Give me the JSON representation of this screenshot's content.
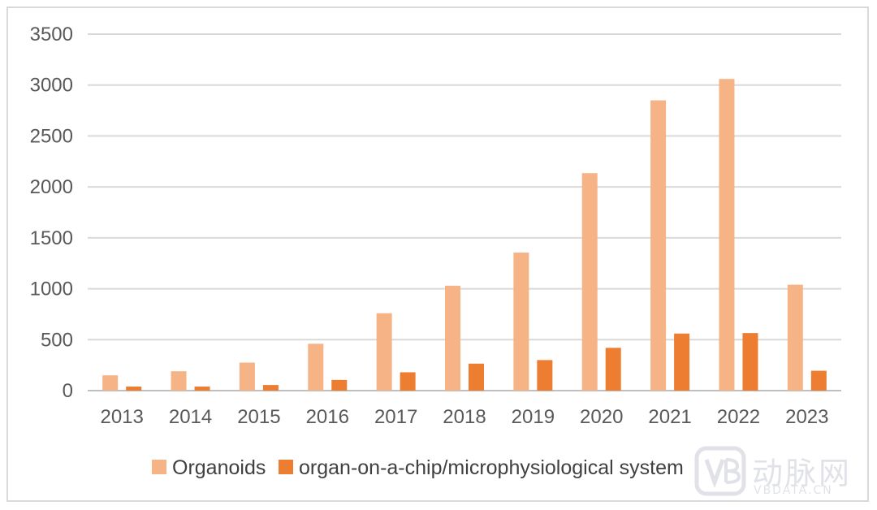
{
  "chart_data": {
    "type": "bar",
    "categories": [
      "2013",
      "2014",
      "2015",
      "2016",
      "2017",
      "2018",
      "2019",
      "2020",
      "2021",
      "2022",
      "2023"
    ],
    "series": [
      {
        "name": "Organoids",
        "color": "#f6b386",
        "values": [
          150,
          190,
          275,
          460,
          760,
          1030,
          1355,
          2135,
          2850,
          3060,
          1040
        ]
      },
      {
        "name": "organ-on-a-chip/microphysiological system",
        "color": "#ed7d31",
        "values": [
          40,
          40,
          55,
          105,
          180,
          265,
          300,
          420,
          560,
          565,
          195
        ]
      }
    ],
    "ylim": [
      0,
      3500
    ],
    "yticks": [
      0,
      500,
      1000,
      1500,
      2000,
      2500,
      3000,
      3500
    ],
    "grid": true,
    "legend_position": "bottom"
  },
  "watermark": {
    "logo_text": "动脉网",
    "url_text": "VBDATA.CN",
    "color": "#c8ccd6"
  }
}
